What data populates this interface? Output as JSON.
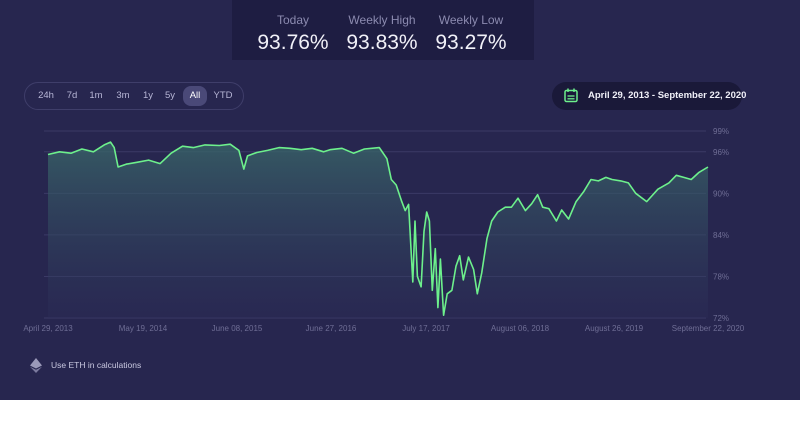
{
  "stats": [
    {
      "label": "Today",
      "value": "93.76%"
    },
    {
      "label": "Weekly High",
      "value": "93.83%"
    },
    {
      "label": "Weekly Low",
      "value": "93.27%"
    }
  ],
  "ranges": [
    {
      "label": "24h",
      "active": false
    },
    {
      "label": "7d",
      "active": false
    },
    {
      "label": "1m",
      "active": false
    },
    {
      "label": "3m",
      "active": false
    },
    {
      "label": "1y",
      "active": false
    },
    {
      "label": "5y",
      "active": false
    },
    {
      "label": "All",
      "active": true
    },
    {
      "label": "YTD",
      "active": false
    }
  ],
  "date_range": {
    "label": "April 29, 2013 - September 22, 2020",
    "icon": "calendar-icon"
  },
  "footer": {
    "label": "Use ETH in calculations",
    "icon": "ethereum-icon"
  },
  "colors": {
    "line": "#6df08c",
    "accent": "#6df08c",
    "background": "#27264f"
  },
  "chart_data": {
    "type": "area",
    "x_unit": "date",
    "ylim": [
      72,
      99
    ],
    "y_ticks": [
      "99%",
      "96%",
      "90%",
      "84%",
      "78%",
      "72%"
    ],
    "x_ticks": [
      "April 29, 2013",
      "May 19, 2014",
      "June 08, 2015",
      "June 27, 2016",
      "July 17, 2017",
      "August 06, 2018",
      "August 26, 2019",
      "September 22, 2020"
    ],
    "grid": true,
    "series": [
      {
        "points": [
          [
            "2013-04-29",
            95.6
          ],
          [
            "2013-06-15",
            96.0
          ],
          [
            "2013-08-01",
            95.8
          ],
          [
            "2013-09-15",
            96.4
          ],
          [
            "2013-11-01",
            96.0
          ],
          [
            "2013-12-15",
            97.0
          ],
          [
            "2014-01-10",
            97.4
          ],
          [
            "2014-01-25",
            96.6
          ],
          [
            "2014-02-10",
            93.8
          ],
          [
            "2014-03-15",
            94.2
          ],
          [
            "2014-05-01",
            94.5
          ],
          [
            "2014-06-15",
            94.8
          ],
          [
            "2014-08-01",
            94.3
          ],
          [
            "2014-09-15",
            95.8
          ],
          [
            "2014-11-01",
            96.8
          ],
          [
            "2014-12-15",
            96.6
          ],
          [
            "2015-02-01",
            97.0
          ],
          [
            "2015-04-01",
            96.9
          ],
          [
            "2015-05-15",
            97.1
          ],
          [
            "2015-06-20",
            96.2
          ],
          [
            "2015-07-10",
            93.5
          ],
          [
            "2015-07-25",
            95.4
          ],
          [
            "2015-09-01",
            95.9
          ],
          [
            "2015-10-15",
            96.2
          ],
          [
            "2015-12-01",
            96.6
          ],
          [
            "2016-01-15",
            96.5
          ],
          [
            "2016-03-01",
            96.3
          ],
          [
            "2016-04-15",
            96.5
          ],
          [
            "2016-06-01",
            96.0
          ],
          [
            "2016-06-27",
            96.3
          ],
          [
            "2016-08-15",
            96.5
          ],
          [
            "2016-10-01",
            95.8
          ],
          [
            "2016-11-15",
            96.4
          ],
          [
            "2017-01-15",
            96.6
          ],
          [
            "2017-02-15",
            95.0
          ],
          [
            "2017-03-05",
            92.0
          ],
          [
            "2017-03-25",
            91.2
          ],
          [
            "2017-04-15",
            89.0
          ],
          [
            "2017-05-01",
            87.5
          ],
          [
            "2017-05-15",
            88.4
          ],
          [
            "2017-06-01",
            77.2
          ],
          [
            "2017-06-10",
            86.0
          ],
          [
            "2017-06-20",
            78.0
          ],
          [
            "2017-07-05",
            76.5
          ],
          [
            "2017-07-17",
            84.5
          ],
          [
            "2017-07-28",
            87.3
          ],
          [
            "2017-08-08",
            86.0
          ],
          [
            "2017-08-20",
            76.0
          ],
          [
            "2017-09-01",
            82.0
          ],
          [
            "2017-09-12",
            73.5
          ],
          [
            "2017-09-22",
            80.5
          ],
          [
            "2017-10-05",
            72.4
          ],
          [
            "2017-10-20",
            75.5
          ],
          [
            "2017-11-08",
            76.0
          ],
          [
            "2017-11-25",
            79.5
          ],
          [
            "2017-12-10",
            81.0
          ],
          [
            "2017-12-25",
            77.5
          ],
          [
            "2018-01-15",
            80.8
          ],
          [
            "2018-02-05",
            79.0
          ],
          [
            "2018-02-20",
            75.5
          ],
          [
            "2018-03-10",
            78.5
          ],
          [
            "2018-04-01",
            83.5
          ],
          [
            "2018-04-20",
            86.0
          ],
          [
            "2018-05-15",
            87.3
          ],
          [
            "2018-06-15",
            88.0
          ],
          [
            "2018-07-10",
            88.0
          ],
          [
            "2018-08-06",
            89.3
          ],
          [
            "2018-09-05",
            87.5
          ],
          [
            "2018-10-01",
            88.5
          ],
          [
            "2018-10-25",
            89.8
          ],
          [
            "2018-11-15",
            88.0
          ],
          [
            "2018-12-10",
            87.8
          ],
          [
            "2019-01-10",
            86.0
          ],
          [
            "2019-02-01",
            87.6
          ],
          [
            "2019-03-01",
            86.3
          ],
          [
            "2019-04-01",
            88.8
          ],
          [
            "2019-05-01",
            90.2
          ],
          [
            "2019-06-01",
            92.0
          ],
          [
            "2019-07-01",
            91.8
          ],
          [
            "2019-08-01",
            92.3
          ],
          [
            "2019-08-26",
            92.0
          ],
          [
            "2019-10-01",
            91.8
          ],
          [
            "2019-11-01",
            91.5
          ],
          [
            "2019-12-01",
            90.0
          ],
          [
            "2020-01-15",
            88.8
          ],
          [
            "2020-03-01",
            90.6
          ],
          [
            "2020-04-15",
            91.5
          ],
          [
            "2020-05-15",
            92.6
          ],
          [
            "2020-06-15",
            92.3
          ],
          [
            "2020-07-15",
            92.0
          ],
          [
            "2020-08-15",
            93.0
          ],
          [
            "2020-09-22",
            93.8
          ]
        ]
      }
    ]
  }
}
